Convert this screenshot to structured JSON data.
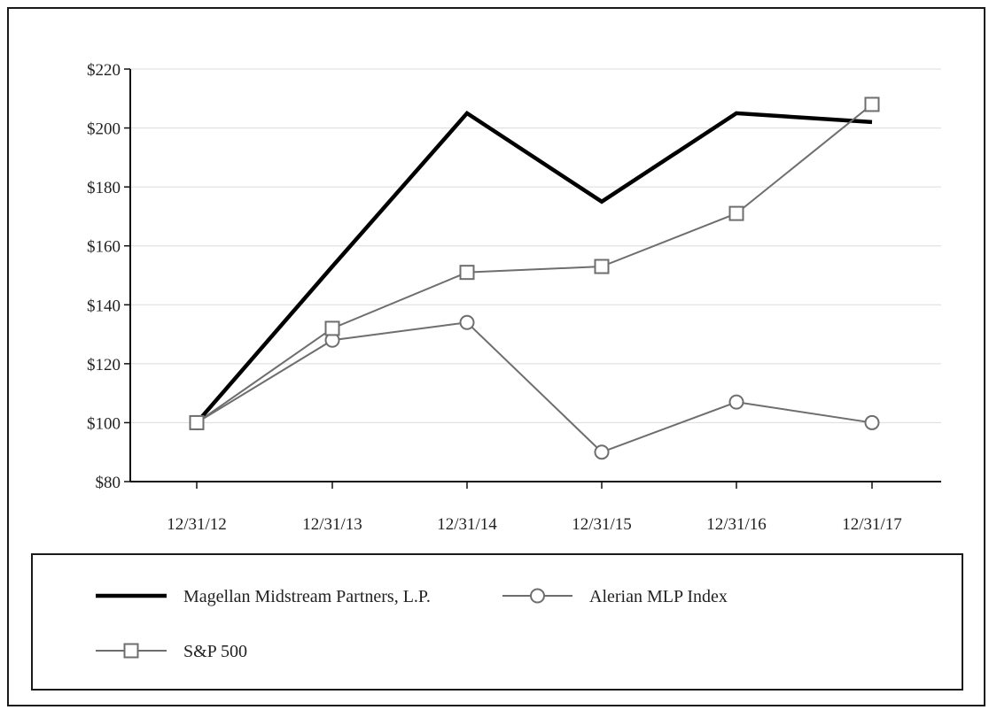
{
  "chart_data": {
    "type": "line",
    "title": "",
    "xlabel": "",
    "ylabel": "",
    "categories": [
      "12/31/12",
      "12/31/13",
      "12/31/14",
      "12/31/15",
      "12/31/16",
      "12/31/17"
    ],
    "ylim": [
      80,
      220
    ],
    "yticks": [
      80,
      100,
      120,
      140,
      160,
      180,
      200,
      220
    ],
    "ytick_labels": [
      "$80",
      "$100",
      "$120",
      "$140",
      "$160",
      "$180",
      "$200",
      "$220"
    ],
    "grid": true,
    "legend_position": "bottom",
    "series": [
      {
        "name": "Magellan Midstream Partners, L.P.",
        "values": [
          100,
          153,
          205,
          175,
          205,
          202
        ],
        "color": "#000000",
        "marker": "none"
      },
      {
        "name": "Alerian MLP Index",
        "values": [
          100,
          128,
          134,
          90,
          107,
          100
        ],
        "color": "#6e6e6e",
        "marker": "circle"
      },
      {
        "name": "S&P 500",
        "values": [
          100,
          132,
          151,
          153,
          171,
          208
        ],
        "color": "#6e6e6e",
        "marker": "square"
      }
    ]
  }
}
